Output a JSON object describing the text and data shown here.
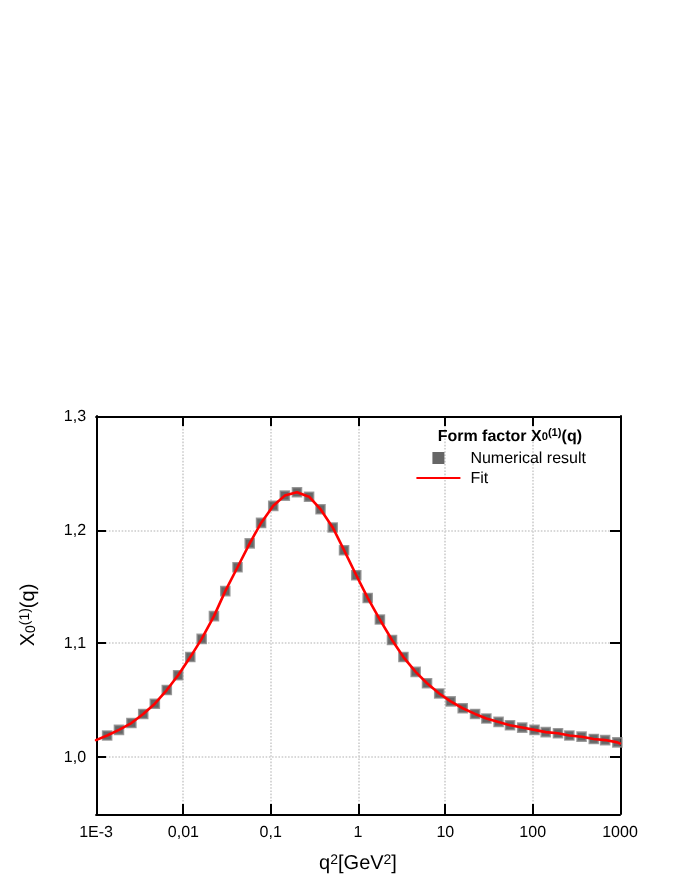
{
  "chart_data": {
    "type": "scatter",
    "legend_title": "Form factor X$_{0}$$^{(1)}$(q)",
    "xlabel": "q$^{2}$[GeV$^{2}$]",
    "ylabel": "X$_{0}$$^{(1)}$(q)",
    "log": "x",
    "xlim": [
      0.001,
      1000
    ],
    "xticks": [
      {
        "value": 0.001,
        "label": "1E-3"
      },
      {
        "value": 0.01,
        "label": "0,01"
      },
      {
        "value": 0.1,
        "label": "0,1"
      },
      {
        "value": 1,
        "label": "1"
      },
      {
        "value": 10,
        "label": "10"
      },
      {
        "value": 100,
        "label": "100"
      },
      {
        "value": 1000,
        "label": "1000"
      }
    ],
    "ylim": [
      0.95,
      1.3
    ],
    "yticks": [
      {
        "value": 1.0,
        "label": "1,0"
      },
      {
        "value": 1.1,
        "label": "1,1"
      },
      {
        "value": 1.2,
        "label": "1,2"
      },
      {
        "value": 1.3,
        "label": "1,3"
      }
    ],
    "grid": true,
    "legend": "top right",
    "series": [
      {
        "name": "Numerical result",
        "marker": "square",
        "color": "#404040",
        "x": [
          0.00134,
          0.00183,
          0.00254,
          0.00347,
          0.00471,
          0.00646,
          0.00871,
          0.012,
          0.0162,
          0.0224,
          0.0302,
          0.0417,
          0.0575,
          0.0776,
          0.107,
          0.145,
          0.2,
          0.275,
          0.372,
          0.513,
          0.692,
          0.955,
          1.29,
          1.78,
          2.45,
          3.31,
          4.57,
          6.17,
          8.51,
          11.5,
          15.8,
          21.9,
          29.5,
          40.7,
          55.0,
          75.9,
          105,
          141,
          195,
          263,
          363,
          501,
          676,
          933
        ],
        "values": [
          1.019,
          1.024,
          1.03,
          1.038,
          1.047,
          1.059,
          1.072,
          1.088,
          1.104,
          1.124,
          1.146,
          1.167,
          1.188,
          1.206,
          1.221,
          1.23,
          1.233,
          1.229,
          1.218,
          1.202,
          1.182,
          1.16,
          1.14,
          1.121,
          1.103,
          1.088,
          1.075,
          1.065,
          1.056,
          1.049,
          1.043,
          1.038,
          1.034,
          1.031,
          1.028,
          1.026,
          1.024,
          1.022,
          1.021,
          1.019,
          1.018,
          1.016,
          1.015,
          1.013
        ]
      },
      {
        "name": "Fit",
        "type": "line",
        "marker": "none",
        "color": "#ff0000",
        "x": [
          0.001,
          0.00134,
          0.00183,
          0.00254,
          0.00347,
          0.00471,
          0.00646,
          0.00871,
          0.012,
          0.0162,
          0.0224,
          0.0302,
          0.0417,
          0.0575,
          0.0776,
          0.107,
          0.145,
          0.2,
          0.275,
          0.372,
          0.513,
          0.692,
          0.955,
          1.29,
          1.78,
          2.45,
          3.31,
          4.57,
          6.17,
          8.51,
          11.5,
          15.8,
          21.9,
          29.5,
          40.7,
          55.0,
          75.9,
          105,
          141,
          195,
          263,
          363,
          501,
          676,
          933,
          1000
        ],
        "values": [
          1.015,
          1.019,
          1.024,
          1.03,
          1.038,
          1.047,
          1.059,
          1.072,
          1.088,
          1.104,
          1.124,
          1.146,
          1.167,
          1.188,
          1.206,
          1.221,
          1.23,
          1.233,
          1.229,
          1.218,
          1.202,
          1.182,
          1.16,
          1.14,
          1.121,
          1.103,
          1.088,
          1.075,
          1.065,
          1.056,
          1.049,
          1.043,
          1.038,
          1.034,
          1.031,
          1.028,
          1.026,
          1.024,
          1.022,
          1.021,
          1.019,
          1.018,
          1.016,
          1.015,
          1.013,
          1.012
        ]
      }
    ]
  }
}
